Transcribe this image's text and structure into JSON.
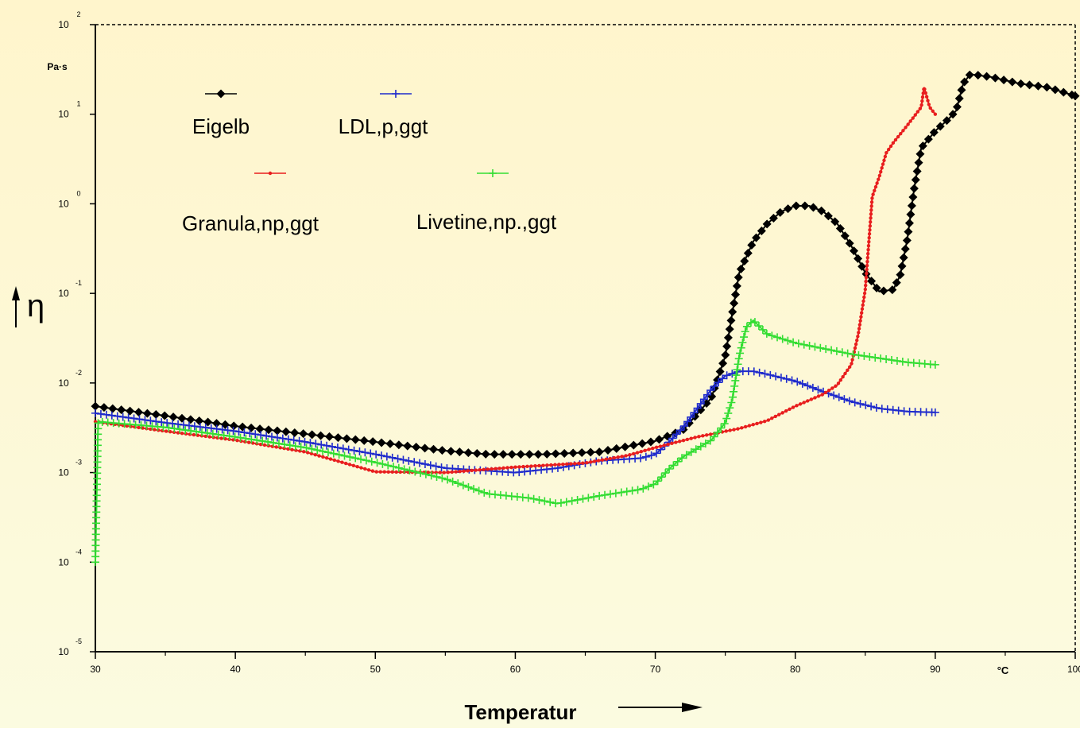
{
  "chart_data": {
    "type": "line",
    "xlabel": "Temperatur",
    "x_unit": "°C",
    "ylabel": "η",
    "y_unit": "Pa·s",
    "xlim": [
      30,
      100
    ],
    "x_ticks": [
      30,
      40,
      50,
      60,
      70,
      80,
      90,
      100
    ],
    "y_scale": "log",
    "ylim": [
      1e-05,
      100
    ],
    "y_tick_base": "10",
    "y_tick_exponents": [
      "-5",
      "-4",
      "-3",
      "-2",
      "-1",
      "0",
      "1",
      "2"
    ],
    "grid": false,
    "legend": "top-left",
    "series": [
      {
        "name": "Eigelb",
        "color": "#000000",
        "marker": "diamond",
        "points": [
          [
            30,
            0.0055
          ],
          [
            35,
            0.0043
          ],
          [
            40,
            0.0033
          ],
          [
            45,
            0.0027
          ],
          [
            50,
            0.0022
          ],
          [
            55,
            0.00175
          ],
          [
            58,
            0.0016
          ],
          [
            62,
            0.0016
          ],
          [
            66,
            0.0017
          ],
          [
            70,
            0.00225
          ],
          [
            72,
            0.003
          ],
          [
            74,
            0.0068
          ],
          [
            75,
            0.02
          ],
          [
            75.5,
            0.06
          ],
          [
            76,
            0.17
          ],
          [
            77,
            0.38
          ],
          [
            78,
            0.6
          ],
          [
            79,
            0.82
          ],
          [
            80,
            0.95
          ],
          [
            81,
            0.95
          ],
          [
            82,
            0.82
          ],
          [
            83,
            0.6
          ],
          [
            84,
            0.34
          ],
          [
            85,
            0.17
          ],
          [
            86,
            0.105
          ],
          [
            87,
            0.11
          ],
          [
            87.5,
            0.16
          ],
          [
            88,
            0.4
          ],
          [
            88.5,
            1.5
          ],
          [
            89,
            4.2
          ],
          [
            90,
            6.5
          ],
          [
            91,
            9.0
          ],
          [
            91.5,
            11
          ],
          [
            92,
            22
          ],
          [
            92.5,
            28
          ],
          [
            94,
            26
          ],
          [
            96,
            22
          ],
          [
            98,
            20
          ],
          [
            100,
            16
          ]
        ]
      },
      {
        "name": "LDL,p,ggt",
        "color": "#1f2bcc",
        "marker": "plus",
        "points": [
          [
            30,
            0.0046
          ],
          [
            35,
            0.0036
          ],
          [
            40,
            0.0029
          ],
          [
            45,
            0.0022
          ],
          [
            50,
            0.0016
          ],
          [
            55,
            0.00112
          ],
          [
            60,
            0.001
          ],
          [
            63,
            0.00112
          ],
          [
            66,
            0.00135
          ],
          [
            69,
            0.00145
          ],
          [
            70,
            0.0016
          ],
          [
            71,
            0.0022
          ],
          [
            72,
            0.0032
          ],
          [
            73,
            0.0052
          ],
          [
            74,
            0.0085
          ],
          [
            75,
            0.012
          ],
          [
            76,
            0.0135
          ],
          [
            77,
            0.0135
          ],
          [
            78,
            0.0125
          ],
          [
            80,
            0.0105
          ],
          [
            82,
            0.008
          ],
          [
            84,
            0.0062
          ],
          [
            86,
            0.0052
          ],
          [
            88,
            0.0048
          ],
          [
            90,
            0.0047
          ]
        ]
      },
      {
        "name": "Granula,np,ggt",
        "color": "#e81e1e",
        "marker": "dot",
        "points": [
          [
            30,
            0.0037
          ],
          [
            35,
            0.0029
          ],
          [
            40,
            0.0023
          ],
          [
            45,
            0.0017
          ],
          [
            50,
            0.00102
          ],
          [
            55,
            0.001
          ],
          [
            60,
            0.00115
          ],
          [
            65,
            0.00128
          ],
          [
            68,
            0.00155
          ],
          [
            70,
            0.0019
          ],
          [
            73,
            0.0025
          ],
          [
            76,
            0.0031
          ],
          [
            78,
            0.0038
          ],
          [
            80,
            0.0055
          ],
          [
            82,
            0.0075
          ],
          [
            83,
            0.0095
          ],
          [
            84,
            0.016
          ],
          [
            84.5,
            0.035
          ],
          [
            85,
            0.11
          ],
          [
            85.5,
            1.2
          ],
          [
            86,
            2.0
          ],
          [
            86.5,
            3.7
          ],
          [
            87,
            4.8
          ],
          [
            88,
            7.5
          ],
          [
            89,
            12
          ],
          [
            89.2,
            20
          ],
          [
            89.6,
            12
          ],
          [
            90,
            10
          ]
        ]
      },
      {
        "name": "Livetine,np.,ggt",
        "color": "#33dd33",
        "marker": "plus",
        "points": [
          [
            30,
            0.0001
          ],
          [
            30.2,
            0.0037
          ],
          [
            35,
            0.0032
          ],
          [
            40,
            0.0025
          ],
          [
            45,
            0.0019
          ],
          [
            50,
            0.0013
          ],
          [
            55,
            0.00085
          ],
          [
            58,
            0.00058
          ],
          [
            61,
            0.00052
          ],
          [
            63,
            0.00045
          ],
          [
            66,
            0.00055
          ],
          [
            69,
            0.00065
          ],
          [
            70,
            0.00075
          ],
          [
            71,
            0.0011
          ],
          [
            72,
            0.0015
          ],
          [
            74,
            0.0023
          ],
          [
            75,
            0.0036
          ],
          [
            75.5,
            0.0065
          ],
          [
            76,
            0.02
          ],
          [
            76.5,
            0.042
          ],
          [
            77,
            0.05
          ],
          [
            78,
            0.035
          ],
          [
            80,
            0.028
          ],
          [
            84,
            0.021
          ],
          [
            88,
            0.017
          ],
          [
            90,
            0.016
          ]
        ]
      }
    ]
  }
}
